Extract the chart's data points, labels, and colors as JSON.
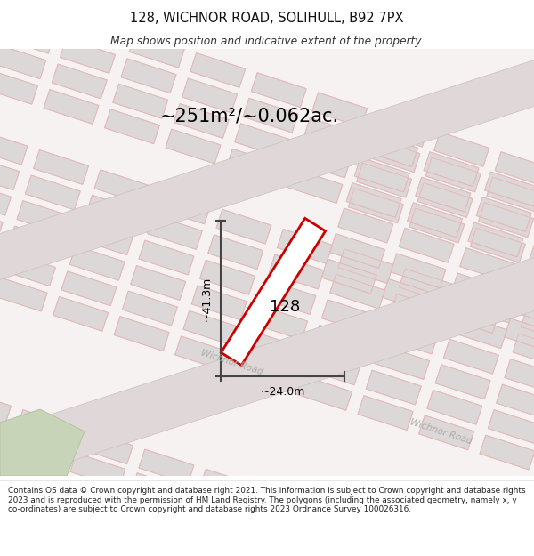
{
  "title": "128, WICHNOR ROAD, SOLIHULL, B92 7PX",
  "subtitle": "Map shows position and indicative extent of the property.",
  "area_text": "~251m²/~0.062ac.",
  "dim_h": "~41.3m",
  "dim_w": "~24.0m",
  "label_num": "128",
  "road_label1": "Wichnor Road",
  "road_label2": "Wichnor Road",
  "footer": "Contains OS data © Crown copyright and database right 2021. This information is subject to Crown copyright and database rights 2023 and is reproduced with the permission of HM Land Registry. The polygons (including the associated geometry, namely x, y co-ordinates) are subject to Crown copyright and database rights 2023 Ordnance Survey 100026316.",
  "map_bg": "#f7f2f2",
  "road_fill": "#e0d8d8",
  "road_edge": "#c8c0c0",
  "block_fill": "#ddd8d8",
  "block_edge": "#c8c0c0",
  "lot_line": "#e8b8b8",
  "red_outline": "#cc0000",
  "gray_line": "#444444",
  "title_color": "#111111",
  "text_color": "#333333",
  "road_text": "#aaaaaa",
  "green_fill": "#c8d4b8",
  "green_edge": "#aab898",
  "white": "#ffffff"
}
